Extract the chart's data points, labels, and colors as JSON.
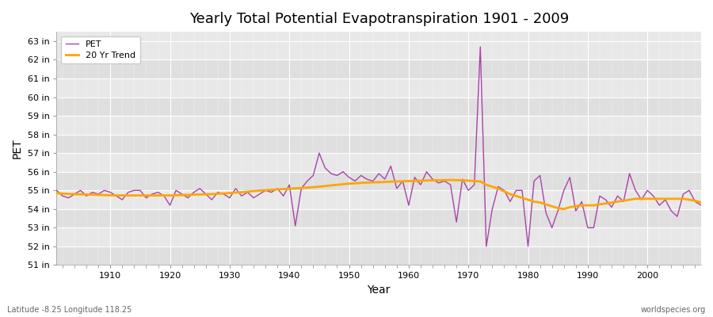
{
  "title": "Yearly Total Potential Evapotranspiration 1901 - 2009",
  "xlabel": "Year",
  "ylabel": "PET",
  "footnote_left": "Latitude -8.25 Longitude 118.25",
  "footnote_right": "worldspecies.org",
  "pet_color": "#aa44aa",
  "trend_color": "#FFA500",
  "background_color": "#ffffff",
  "plot_bg_color": "#e8e8e8",
  "grid_color": "#ffffff",
  "ylim": [
    51,
    63.5
  ],
  "yticks": [
    51,
    52,
    53,
    54,
    55,
    56,
    57,
    58,
    59,
    60,
    61,
    62,
    63
  ],
  "ytick_labels": [
    "51 in",
    "52 in",
    "53 in",
    "54 in",
    "55 in",
    "56 in",
    "57 in",
    "58 in",
    "59 in",
    "60 in",
    "61 in",
    "62 in",
    "63 in"
  ],
  "xlim": [
    1901,
    2009
  ],
  "xticks": [
    1910,
    1920,
    1930,
    1940,
    1950,
    1960,
    1970,
    1980,
    1990,
    2000
  ],
  "years": [
    1901,
    1902,
    1903,
    1904,
    1905,
    1906,
    1907,
    1908,
    1909,
    1910,
    1911,
    1912,
    1913,
    1914,
    1915,
    1916,
    1917,
    1918,
    1919,
    1920,
    1921,
    1922,
    1923,
    1924,
    1925,
    1926,
    1927,
    1928,
    1929,
    1930,
    1931,
    1932,
    1933,
    1934,
    1935,
    1936,
    1937,
    1938,
    1939,
    1940,
    1941,
    1942,
    1943,
    1944,
    1945,
    1946,
    1947,
    1948,
    1949,
    1950,
    1951,
    1952,
    1953,
    1954,
    1955,
    1956,
    1957,
    1958,
    1959,
    1960,
    1961,
    1962,
    1963,
    1964,
    1965,
    1966,
    1967,
    1968,
    1969,
    1970,
    1971,
    1972,
    1973,
    1974,
    1975,
    1976,
    1977,
    1978,
    1979,
    1980,
    1981,
    1982,
    1983,
    1984,
    1985,
    1986,
    1987,
    1988,
    1989,
    1990,
    1991,
    1992,
    1993,
    1994,
    1995,
    1996,
    1997,
    1998,
    1999,
    2000,
    2001,
    2002,
    2003,
    2004,
    2005,
    2006,
    2007,
    2008,
    2009
  ],
  "pet_values": [
    55.0,
    54.7,
    54.6,
    54.8,
    55.0,
    54.7,
    54.9,
    54.8,
    55.0,
    54.9,
    54.7,
    54.5,
    54.9,
    55.0,
    55.0,
    54.6,
    54.8,
    54.9,
    54.7,
    54.2,
    55.0,
    54.8,
    54.6,
    54.9,
    55.1,
    54.8,
    54.5,
    54.9,
    54.8,
    54.6,
    55.1,
    54.7,
    54.9,
    54.6,
    54.8,
    55.0,
    54.9,
    55.1,
    54.7,
    55.3,
    53.1,
    55.1,
    55.5,
    55.8,
    57.0,
    56.2,
    55.9,
    55.8,
    56.0,
    55.7,
    55.5,
    55.8,
    55.6,
    55.5,
    55.9,
    55.6,
    56.3,
    55.1,
    55.5,
    54.2,
    55.7,
    55.3,
    56.0,
    55.6,
    55.4,
    55.5,
    55.3,
    53.3,
    55.6,
    55.0,
    55.3,
    62.7,
    52.0,
    54.0,
    55.2,
    55.0,
    54.4,
    55.0,
    55.0,
    52.0,
    55.5,
    55.8,
    53.8,
    53.0,
    53.9,
    55.0,
    55.7,
    53.9,
    54.4,
    53.0,
    53.0,
    54.7,
    54.5,
    54.1,
    54.7,
    54.4,
    55.9,
    55.0,
    54.5,
    55.0,
    54.7,
    54.2,
    54.5,
    53.9,
    53.6,
    54.8,
    55.0,
    54.4,
    54.2
  ],
  "trend_values": [
    54.85,
    54.83,
    54.81,
    54.8,
    54.79,
    54.78,
    54.77,
    54.76,
    54.75,
    54.74,
    54.73,
    54.73,
    54.73,
    54.73,
    54.73,
    54.73,
    54.73,
    54.73,
    54.73,
    54.73,
    54.74,
    54.75,
    54.76,
    54.77,
    54.78,
    54.79,
    54.8,
    54.82,
    54.84,
    54.86,
    54.88,
    54.9,
    54.93,
    54.96,
    54.99,
    55.01,
    55.03,
    55.05,
    55.07,
    55.09,
    55.11,
    55.13,
    55.15,
    55.17,
    55.2,
    55.23,
    55.27,
    55.3,
    55.33,
    55.36,
    55.38,
    55.4,
    55.42,
    55.43,
    55.44,
    55.45,
    55.47,
    55.48,
    55.49,
    55.5,
    55.51,
    55.52,
    55.53,
    55.54,
    55.55,
    55.55,
    55.56,
    55.55,
    55.54,
    55.52,
    55.5,
    55.48,
    55.3,
    55.2,
    55.1,
    54.95,
    54.8,
    54.7,
    54.6,
    54.5,
    54.4,
    54.35,
    54.25,
    54.15,
    54.05,
    54.0,
    54.1,
    54.15,
    54.2,
    54.2,
    54.2,
    54.25,
    54.3,
    54.35,
    54.4,
    54.45,
    54.5,
    54.55,
    54.55,
    54.55,
    54.55,
    54.55,
    54.55,
    54.55,
    54.55,
    54.55,
    54.5,
    54.45,
    54.35
  ]
}
